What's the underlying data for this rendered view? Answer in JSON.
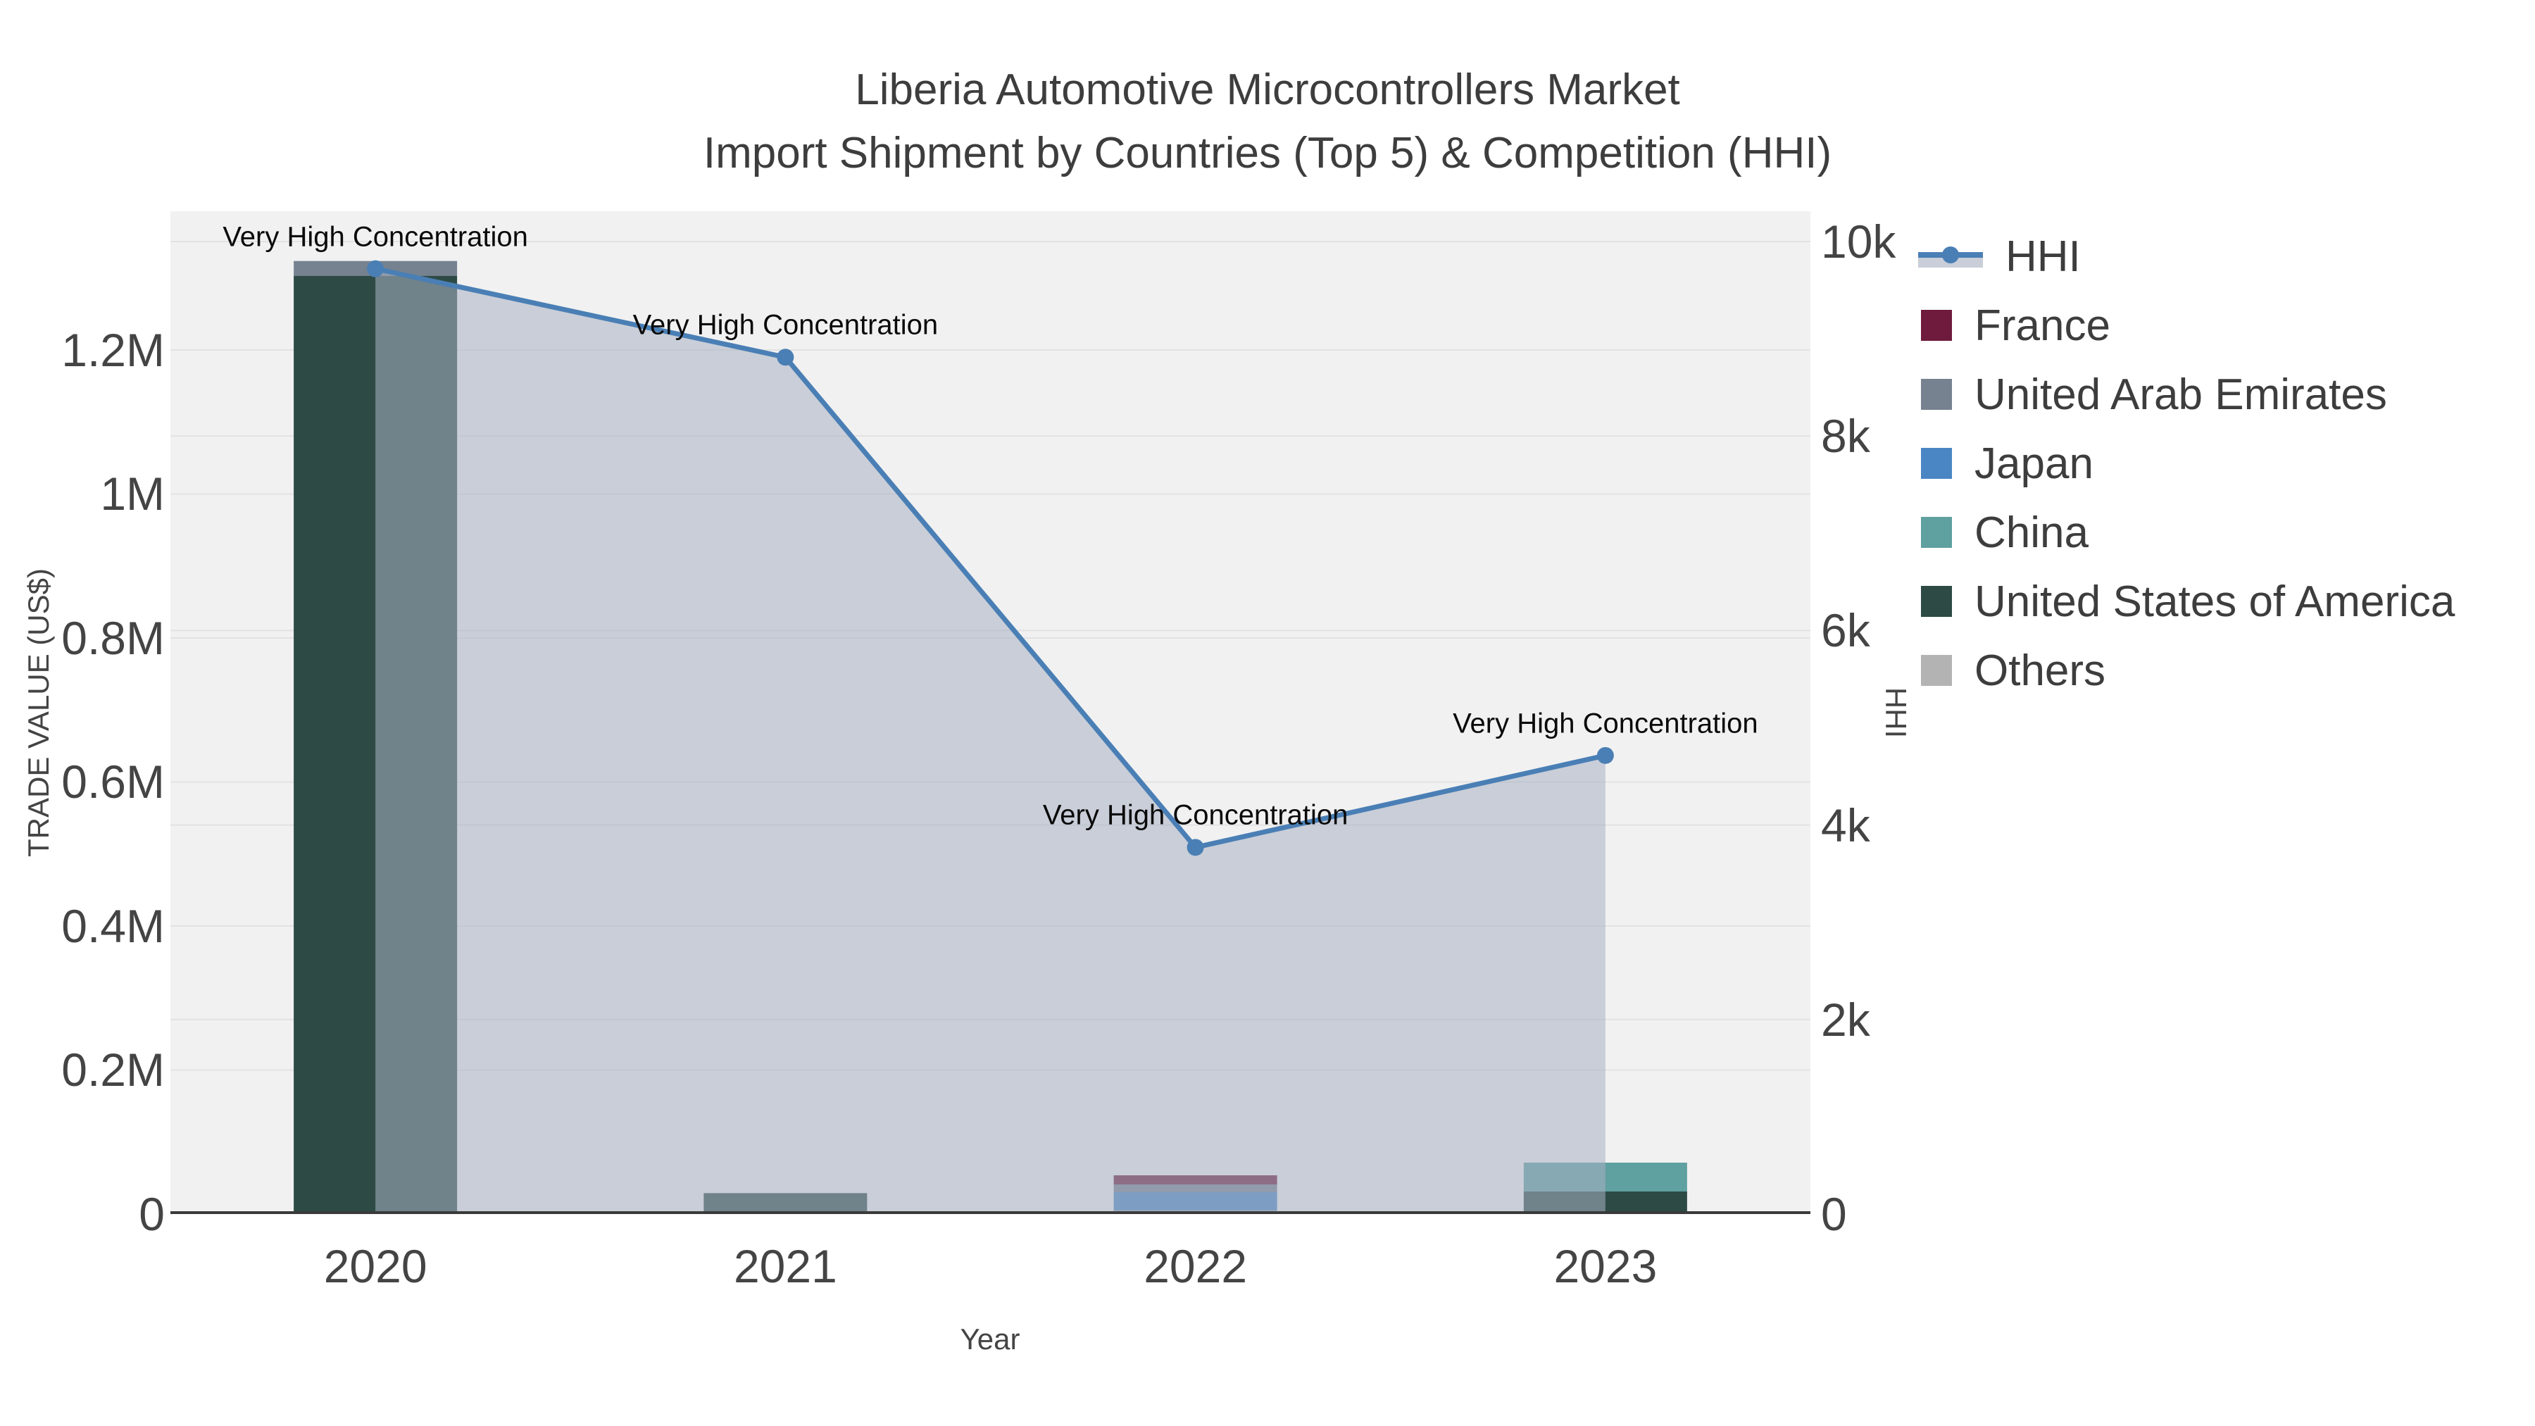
{
  "title": "Liberia Automotive Microcontrollers Market",
  "subtitle": "Import Shipment by Countries (Top 5) & Competition (HHI)",
  "axes": {
    "x": {
      "title": "Year",
      "ticks": [
        "2020",
        "2021",
        "2022",
        "2023"
      ]
    },
    "y_left": {
      "title": "TRADE VALUE (US$)",
      "max": 1392600,
      "ticks": [
        {
          "label": "0",
          "value": 0
        },
        {
          "label": "0.2M",
          "value": 200000
        },
        {
          "label": "0.4M",
          "value": 400000
        },
        {
          "label": "0.6M",
          "value": 600000
        },
        {
          "label": "0.8M",
          "value": 800000
        },
        {
          "label": "1M",
          "value": 1000000
        },
        {
          "label": "1.2M",
          "value": 1200000
        }
      ]
    },
    "y_right": {
      "title": "HHI",
      "max": 10311,
      "ticks": [
        {
          "label": "0",
          "value": 0
        },
        {
          "label": "2k",
          "value": 2000
        },
        {
          "label": "4k",
          "value": 4000
        },
        {
          "label": "6k",
          "value": 6000
        },
        {
          "label": "8k",
          "value": 8000
        },
        {
          "label": "10k",
          "value": 10000
        }
      ]
    }
  },
  "legend": [
    {
      "label": "HHI",
      "type": "line",
      "color": "#4a7fb5",
      "area_color": "#c9ced8"
    },
    {
      "label": "France",
      "type": "bar",
      "color": "#6e1b3d"
    },
    {
      "label": "United Arab Emirates",
      "type": "bar",
      "color": "#76828f"
    },
    {
      "label": "Japan",
      "type": "bar",
      "color": "#4a86c4"
    },
    {
      "label": "China",
      "type": "bar",
      "color": "#5fa0a0"
    },
    {
      "label": "United States of America",
      "type": "bar",
      "color": "#2d4a45"
    },
    {
      "label": "Others",
      "type": "bar",
      "color": "#b3b3b3"
    }
  ],
  "chart_data": {
    "type": "combo: stacked bar (trade value, left axis) + line with area (HHI, right axis)",
    "categories": [
      "2020",
      "2021",
      "2022",
      "2023"
    ],
    "bar_unit": "US$",
    "bar_stack_order": "bottom-to-top",
    "bar_series": [
      {
        "name": "Others",
        "color": "#b3b3b3",
        "values": [
          0,
          0,
          4900,
          2900
        ]
      },
      {
        "name": "United States of America",
        "color": "#2d4a45",
        "values": [
          1303000,
          29000,
          0,
          28400
        ]
      },
      {
        "name": "China",
        "color": "#5fa0a0",
        "values": [
          0,
          0,
          0,
          40100
        ]
      },
      {
        "name": "Japan",
        "color": "#4a86c4",
        "values": [
          0,
          0,
          25400,
          0
        ]
      },
      {
        "name": "United Arab Emirates",
        "color": "#76828f",
        "values": [
          20500,
          0,
          10800,
          0
        ]
      },
      {
        "name": "France",
        "color": "#6e1b3d",
        "values": [
          0,
          0,
          12700,
          0
        ]
      }
    ],
    "line_series": {
      "name": "HHI",
      "color": "#4a7fb5",
      "area_fill": "rgba(168,177,195,0.55)",
      "values": [
        9720,
        8810,
        3770,
        4715
      ]
    },
    "annotations": [
      {
        "category": "2020",
        "text": "Very High Concentration"
      },
      {
        "category": "2021",
        "text": "Very High Concentration"
      },
      {
        "category": "2022",
        "text": "Very High Concentration"
      },
      {
        "category": "2023",
        "text": "Very High Concentration"
      }
    ],
    "layout_hints": {
      "plot_background": "#f1f1f1",
      "grid": "on (both axes, light gray)",
      "legend_position": "right",
      "x_axis_line_color": "#3a3a3a"
    }
  }
}
